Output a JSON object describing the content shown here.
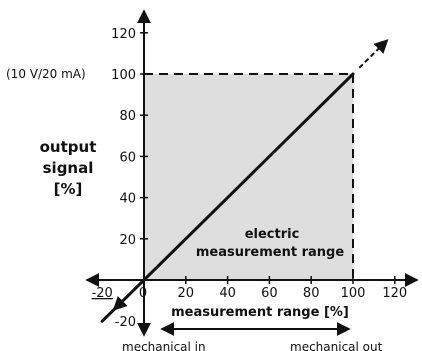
{
  "chart_data": {
    "type": "line",
    "xlabel": "measurement range [%]",
    "ylabel": [
      "output",
      "signal",
      "[%]"
    ],
    "xlim": [
      -20,
      120
    ],
    "ylim": [
      -20,
      120
    ],
    "x_ticks": [
      "-20",
      "0",
      "20",
      "40",
      "60",
      "80",
      "100",
      "120"
    ],
    "y_ticks": [
      "-20",
      "20",
      "40",
      "60",
      "80",
      "100",
      "120"
    ],
    "series": [
      {
        "x": [
          -20,
          100
        ],
        "y": [
          -20,
          100
        ]
      }
    ],
    "shaded_region": {
      "x": [
        0,
        100
      ],
      "y": [
        0,
        100
      ],
      "color": "#dedede"
    },
    "output_level_label": "(10 V/20 mA)",
    "region_label": [
      "electric",
      "measurement range"
    ],
    "mechanical_range": [
      "mechanical in",
      "mechanical out"
    ],
    "colors": {
      "line": "#111111",
      "axis": "#111111",
      "shade": "#dedede"
    }
  }
}
